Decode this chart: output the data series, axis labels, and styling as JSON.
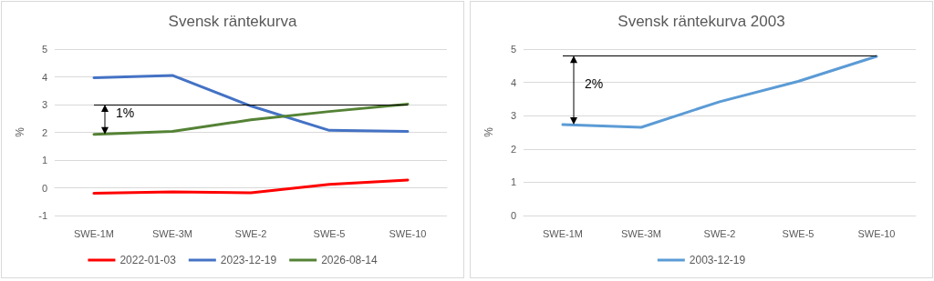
{
  "chart_data": [
    {
      "type": "line",
      "title": "Svensk räntekurva",
      "ylabel": "%",
      "categories": [
        "SWE-1M",
        "SWE-3M",
        "SWE-2",
        "SWE-5",
        "SWE-10"
      ],
      "series": [
        {
          "name": "2022-01-03",
          "color": "#ff0000",
          "values": [
            -0.2,
            -0.15,
            -0.18,
            0.12,
            0.28
          ]
        },
        {
          "name": "2023-12-19",
          "color": "#4472c4",
          "values": [
            3.97,
            4.05,
            2.95,
            2.07,
            2.03
          ]
        },
        {
          "name": "2026-08-14",
          "color": "#548235",
          "values": [
            1.93,
            2.03,
            2.45,
            2.75,
            3.02
          ]
        }
      ],
      "ylim": [
        -1,
        5
      ],
      "yticks": [
        -1,
        0,
        1,
        2,
        3,
        4,
        5
      ],
      "ref_lines": [
        {
          "axis": "y",
          "value": 3,
          "color": "#000000"
        }
      ],
      "annotations": [
        "1%"
      ],
      "grid": "y",
      "legend": "bottom",
      "marker": "none",
      "line_style": "solid"
    },
    {
      "type": "line",
      "title": "Svensk räntekurva 2003",
      "ylabel": "%",
      "categories": [
        "SWE-1M",
        "SWE-3M",
        "SWE-2",
        "SWE-5",
        "SWE-10"
      ],
      "series": [
        {
          "name": "2003-12-19",
          "color": "#5b9bd5",
          "values": [
            2.73,
            2.65,
            3.42,
            4.03,
            4.78
          ]
        }
      ],
      "ylim": [
        0,
        5
      ],
      "yticks": [
        0,
        1,
        2,
        3,
        4,
        5
      ],
      "ref_lines": [
        {
          "axis": "y",
          "value": 4.8,
          "color": "#000000"
        }
      ],
      "annotations": [
        "2%"
      ],
      "grid": "y",
      "legend": "bottom",
      "marker": "none",
      "line_style": "solid"
    }
  ]
}
